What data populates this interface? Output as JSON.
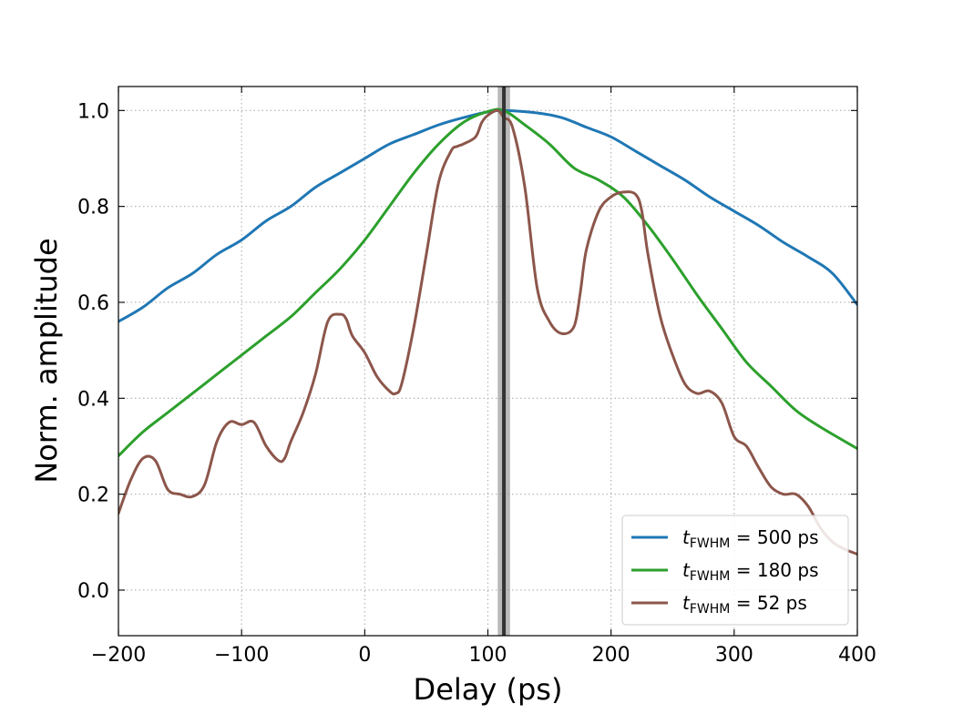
{
  "chart_data": {
    "type": "line",
    "title": "",
    "xlabel": "Delay (ps)",
    "ylabel": "Norm. amplitude",
    "xlim": [
      -200,
      400
    ],
    "ylim": [
      -0.095,
      1.05
    ],
    "xticks": [
      -200,
      -100,
      0,
      100,
      200,
      300,
      400
    ],
    "xtick_labels": [
      "−200",
      "−100",
      "0",
      "100",
      "200",
      "300",
      "400"
    ],
    "yticks": [
      0.0,
      0.2,
      0.4,
      0.6,
      0.8,
      1.0
    ],
    "ytick_labels": [
      "0.0",
      "0.2",
      "0.4",
      "0.6",
      "0.8",
      "1.0"
    ],
    "grid": true,
    "legend_position": "lower-right",
    "reference_line": {
      "x": 113,
      "band": [
        108,
        118
      ]
    },
    "series": [
      {
        "name": "500 ps",
        "legend_var": "t",
        "legend_sub": "FWHM",
        "color": "#1f77b4",
        "x": [
          -200,
          -180,
          -160,
          -140,
          -120,
          -100,
          -80,
          -60,
          -40,
          -20,
          0,
          20,
          40,
          60,
          80,
          100,
          113,
          140,
          160,
          180,
          200,
          220,
          240,
          260,
          280,
          300,
          320,
          340,
          360,
          380,
          400
        ],
        "y": [
          0.56,
          0.59,
          0.63,
          0.66,
          0.7,
          0.73,
          0.77,
          0.8,
          0.84,
          0.87,
          0.9,
          0.93,
          0.95,
          0.97,
          0.985,
          0.997,
          1.0,
          0.995,
          0.985,
          0.965,
          0.945,
          0.915,
          0.885,
          0.855,
          0.82,
          0.79,
          0.76,
          0.725,
          0.695,
          0.66,
          0.595
        ]
      },
      {
        "name": "180 ps",
        "legend_var": "t",
        "legend_sub": "FWHM",
        "color": "#2ca02c",
        "x": [
          -200,
          -180,
          -160,
          -140,
          -120,
          -100,
          -80,
          -60,
          -40,
          -20,
          0,
          20,
          40,
          60,
          80,
          100,
          113,
          130,
          150,
          170,
          190,
          210,
          230,
          250,
          270,
          290,
          310,
          330,
          350,
          370,
          400
        ],
        "y": [
          0.28,
          0.33,
          0.37,
          0.41,
          0.45,
          0.49,
          0.53,
          0.57,
          0.62,
          0.67,
          0.73,
          0.8,
          0.87,
          0.93,
          0.975,
          0.998,
          1.0,
          0.97,
          0.93,
          0.88,
          0.855,
          0.82,
          0.76,
          0.69,
          0.615,
          0.545,
          0.475,
          0.425,
          0.375,
          0.34,
          0.295
        ]
      },
      {
        "name": "52 ps",
        "legend_var": "t",
        "legend_sub": "FWHM",
        "color": "#8c564b",
        "x": [
          -200,
          -190,
          -180,
          -170,
          -160,
          -150,
          -140,
          -130,
          -120,
          -110,
          -100,
          -90,
          -80,
          -70,
          -65,
          -60,
          -50,
          -40,
          -30,
          -20,
          -15,
          -10,
          0,
          10,
          20,
          25,
          30,
          40,
          50,
          60,
          70,
          75,
          80,
          90,
          95,
          100,
          108,
          113,
          120,
          130,
          140,
          150,
          160,
          170,
          175,
          180,
          190,
          200,
          210,
          220,
          225,
          230,
          240,
          250,
          260,
          270,
          280,
          290,
          300,
          310,
          320,
          330,
          340,
          350,
          360,
          370,
          380,
          390,
          400
        ],
        "y": [
          0.16,
          0.23,
          0.275,
          0.27,
          0.21,
          0.2,
          0.195,
          0.22,
          0.31,
          0.35,
          0.345,
          0.35,
          0.3,
          0.27,
          0.275,
          0.31,
          0.37,
          0.45,
          0.56,
          0.575,
          0.565,
          0.53,
          0.495,
          0.445,
          0.415,
          0.41,
          0.43,
          0.55,
          0.7,
          0.85,
          0.915,
          0.925,
          0.93,
          0.945,
          0.975,
          0.99,
          1.0,
          0.985,
          0.965,
          0.84,
          0.63,
          0.56,
          0.535,
          0.55,
          0.62,
          0.71,
          0.79,
          0.82,
          0.83,
          0.825,
          0.79,
          0.7,
          0.57,
          0.49,
          0.43,
          0.41,
          0.415,
          0.39,
          0.32,
          0.3,
          0.255,
          0.215,
          0.2,
          0.2,
          0.175,
          0.13,
          0.1,
          0.085,
          0.075
        ]
      }
    ]
  }
}
